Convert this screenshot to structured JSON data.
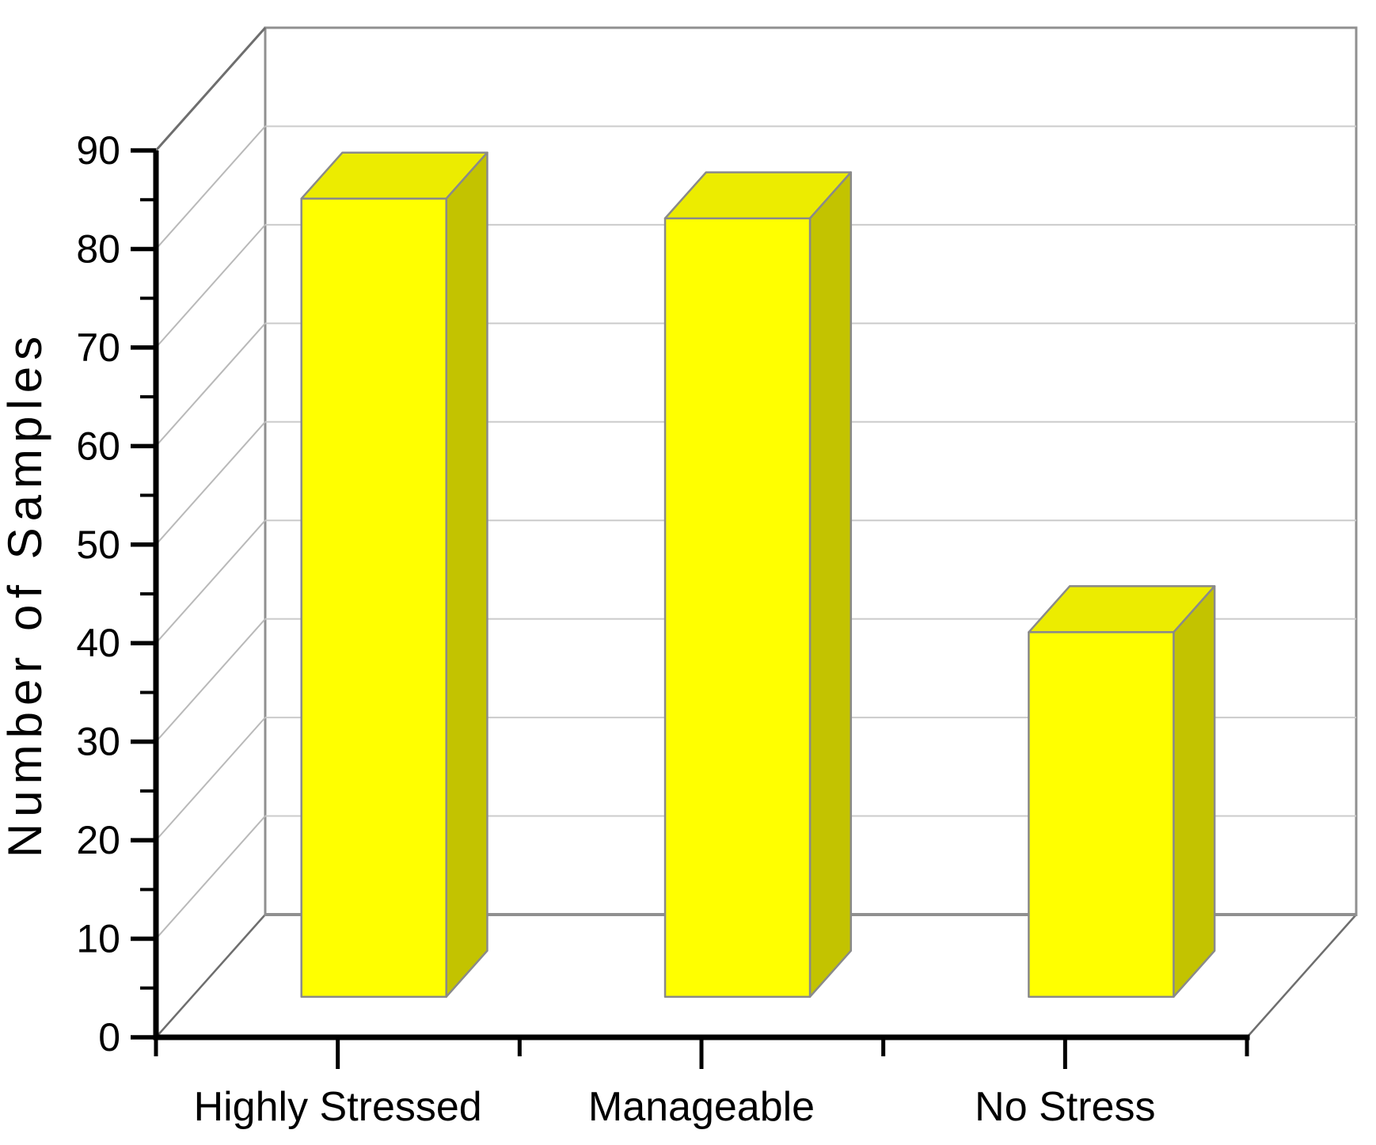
{
  "chart_data": {
    "type": "bar",
    "projection": "3d-column",
    "title": "",
    "categories": [
      "Highly Stressed",
      "Manageable",
      "No Stress"
    ],
    "values": [
      81,
      79,
      37
    ],
    "xlabel": "",
    "ylabel": "Number of Samples",
    "ylim": [
      0,
      90
    ],
    "ytick_interval": 10,
    "ytick_minor_interval": 5,
    "yticks": [
      0,
      10,
      20,
      30,
      40,
      50,
      60,
      70,
      80,
      90
    ],
    "grid": "major horizontal gridlines on back wall with matching diagonals on left wall",
    "legend_position": "none",
    "colors": {
      "bar_front": "#FFFF00",
      "bar_top": "#ECEC00",
      "bar_side": "#C3C300",
      "bar_outline": "#8A8A8A",
      "gridline": "#CBCBCB",
      "wall_edge": "#909090",
      "box_corner_edge": "#6E6E6E",
      "axis": "#000000",
      "background": "#FFFFFF",
      "text": "#000000"
    }
  }
}
